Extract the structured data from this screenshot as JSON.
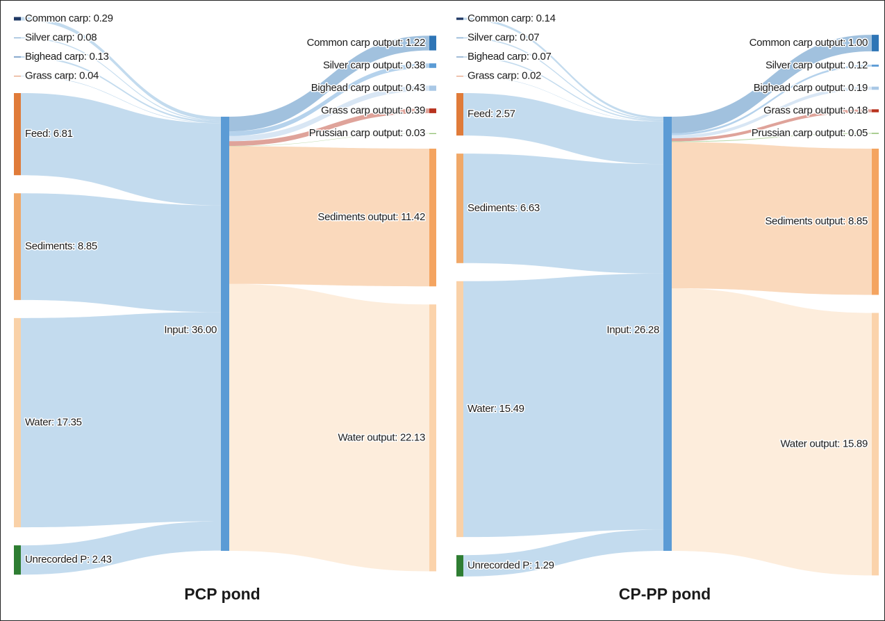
{
  "chart_data": [
    {
      "type": "sankey",
      "title": "PCP pond",
      "link_color": "#b4d2ea",
      "sources": [
        {
          "label": "Common carp: 0.29",
          "value": 0.29,
          "color": "#1f3864"
        },
        {
          "label": "Silver carp: 0.08",
          "value": 0.08,
          "color": "#8fb4d6"
        },
        {
          "label": "Bighead carp: 0.13",
          "value": 0.13,
          "color": "#8faed0"
        },
        {
          "label": "Grass carp: 0.04",
          "value": 0.04,
          "color": "#e08a60"
        },
        {
          "label": "Feed: 6.81",
          "value": 6.81,
          "color": "#e07b39"
        },
        {
          "label": "Sediments: 8.85",
          "value": 8.85,
          "color": "#f0a868"
        },
        {
          "label": "Water: 17.35",
          "value": 17.35,
          "color": "#f9d1a8"
        },
        {
          "label": "Unrecorded P: 2.43",
          "value": 2.43,
          "color": "#2e7d32"
        }
      ],
      "center": {
        "label": "Input: 36.00",
        "value": 36.0,
        "color": "#5b9bd5"
      },
      "targets": [
        {
          "label": "Common carp output: 1.22",
          "value": 1.22,
          "color": "#2e75b6"
        },
        {
          "label": "Silver carp output: 0.38",
          "value": 0.38,
          "color": "#5b9bd5"
        },
        {
          "label": "Bighead carp output: 0.43",
          "value": 0.43,
          "color": "#a9c8e6"
        },
        {
          "label": "Grass carp output: 0.39",
          "value": 0.39,
          "color": "#b8321e"
        },
        {
          "label": "Prussian carp output: 0.03",
          "value": 0.03,
          "color": "#70ad47"
        },
        {
          "label": "Sediments output: 11.42",
          "value": 11.42,
          "color": "#f4a460"
        },
        {
          "label": "Water output: 22.13",
          "value": 22.13,
          "color": "#fbd3ab"
        }
      ]
    },
    {
      "type": "sankey",
      "title": "CP-PP pond",
      "link_color": "#b4d2ea",
      "sources": [
        {
          "label": "Common carp: 0.14",
          "value": 0.14,
          "color": "#1f3864"
        },
        {
          "label": "Silver carp: 0.07",
          "value": 0.07,
          "color": "#8fb4d6"
        },
        {
          "label": "Bighead carp: 0.07",
          "value": 0.07,
          "color": "#8faed0"
        },
        {
          "label": "Grass carp: 0.02",
          "value": 0.02,
          "color": "#e08a60"
        },
        {
          "label": "Feed: 2.57",
          "value": 2.57,
          "color": "#e07b39"
        },
        {
          "label": "Sediments: 6.63",
          "value": 6.63,
          "color": "#f0a868"
        },
        {
          "label": "Water: 15.49",
          "value": 15.49,
          "color": "#f9d1a8"
        },
        {
          "label": "Unrecorded P: 1.29",
          "value": 1.29,
          "color": "#2e7d32"
        }
      ],
      "center": {
        "label": "Input: 26.28",
        "value": 26.28,
        "color": "#5b9bd5"
      },
      "targets": [
        {
          "label": "Common carp output: 1.00",
          "value": 1.0,
          "color": "#2e75b6"
        },
        {
          "label": "Silver carp output: 0.12",
          "value": 0.12,
          "color": "#5b9bd5"
        },
        {
          "label": "Bighead carp output: 0.19",
          "value": 0.19,
          "color": "#a9c8e6"
        },
        {
          "label": "Grass carp output: 0.18",
          "value": 0.18,
          "color": "#b8321e"
        },
        {
          "label": "Prussian carp output: 0.05",
          "value": 0.05,
          "color": "#70ad47"
        },
        {
          "label": "Sediments output: 8.85",
          "value": 8.85,
          "color": "#f4a460"
        },
        {
          "label": "Water output: 15.89",
          "value": 15.89,
          "color": "#fbd3ab"
        }
      ]
    }
  ]
}
